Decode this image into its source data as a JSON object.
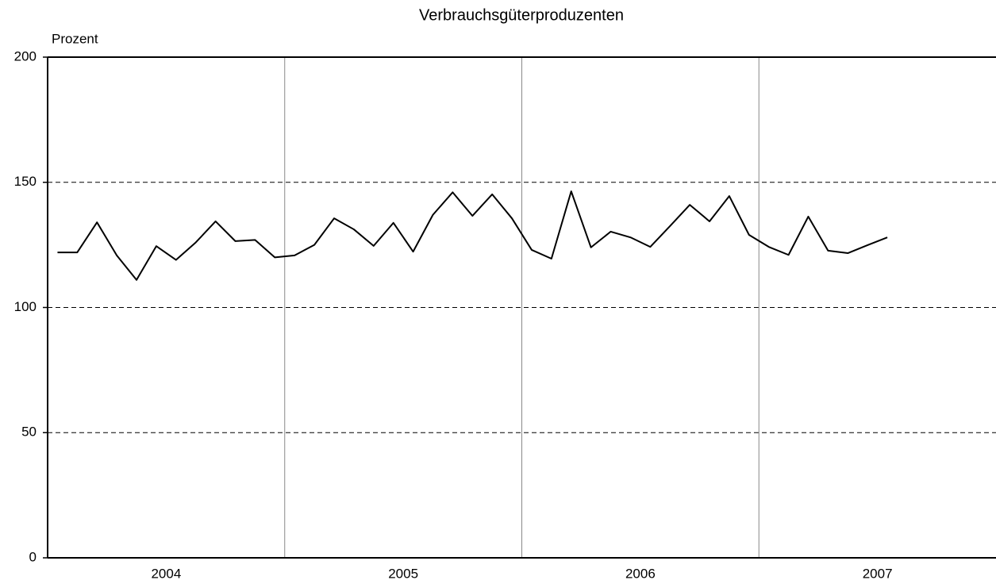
{
  "chart_data": {
    "type": "line",
    "title": "Verbrauchsgüterproduzenten",
    "y_label": "Prozent",
    "categories": [
      null,
      null,
      null,
      null,
      null,
      null,
      null,
      null,
      null,
      null,
      null,
      null,
      null,
      null,
      null,
      null,
      null,
      null,
      null,
      null,
      null,
      null,
      null,
      null,
      null,
      null,
      null,
      null,
      null,
      null,
      null,
      null,
      null,
      null,
      null,
      null,
      null,
      null,
      null,
      null,
      null,
      null,
      null,
      null,
      null,
      null,
      null,
      null
    ],
    "year_labels": [
      "2004",
      "2005",
      "2006",
      "2007"
    ],
    "series": [
      {
        "name": null,
        "color": "#000000",
        "values": [
          122,
          122,
          134,
          120.8,
          111,
          124.5,
          119,
          126,
          134.4,
          126.5,
          127,
          120,
          120.8,
          125,
          135.6,
          131.2,
          124.6,
          133.8,
          122.3,
          137,
          146,
          136.6,
          145.2,
          135.6,
          123,
          119.5,
          146.4,
          124,
          130.3,
          128,
          124.2,
          132.5,
          141,
          134.4,
          144.5,
          129,
          124.2,
          121,
          136.3,
          122.7,
          121.7,
          124.9,
          128,
          null,
          null,
          null,
          null,
          null
        ]
      }
    ],
    "ylim": [
      0,
      200
    ],
    "yticks": [
      0,
      50,
      100,
      150,
      200
    ],
    "grid": true
  }
}
